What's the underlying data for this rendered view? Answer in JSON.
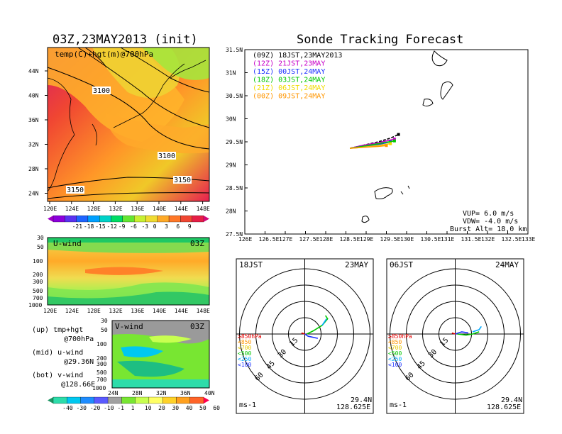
{
  "header": {
    "left_title": "03Z,23MAY2013 (init)",
    "right_title": "Sonde Tracking Forecast"
  },
  "colors": {
    "accent": "#000000",
    "scale_main": [
      "#a000c8",
      "#8c00dc",
      "#5a32f0",
      "#1e64ff",
      "#00a0ff",
      "#00d2c8",
      "#00dc64",
      "#64e632",
      "#c8f032",
      "#f0dc32",
      "#ffaa28",
      "#ff7828",
      "#f04632",
      "#e61e46",
      "#d20a78"
    ],
    "scale_wind": [
      "#1e9664",
      "#2ddcaa",
      "#00c8f0",
      "#1e8cff",
      "#5a5aff",
      "#a0a0a0",
      "#78e632",
      "#c8ff50",
      "#ffff64",
      "#ffd228",
      "#ffa01e",
      "#ff6428",
      "#ff0050"
    ]
  },
  "top_left": {
    "label": "temp(C)+hgt(m)@700hPa",
    "contour_labels": [
      "3100",
      "3100",
      "3150",
      "3150"
    ],
    "lat_ticks": [
      "44N",
      "40N",
      "36N",
      "32N",
      "28N",
      "24N"
    ],
    "lon_ticks": [
      "120E",
      "124E",
      "128E",
      "132E",
      "136E",
      "140E",
      "144E",
      "148E"
    ],
    "colorbar_ticks": [
      "-21",
      "-18",
      "-15",
      "-12",
      "-9",
      "-6",
      "-3",
      "0",
      "3",
      "6",
      "9"
    ]
  },
  "mid_left": {
    "label": "U-wind",
    "time": "03Z",
    "p_ticks": [
      "30",
      "50",
      "100",
      "200",
      "300",
      "500",
      "700",
      "1000"
    ],
    "lon_ticks": [
      "120E",
      "124E",
      "128E",
      "132E",
      "136E",
      "140E",
      "144E",
      "148E"
    ]
  },
  "bot_left": {
    "label": "V-wind",
    "time": "03Z",
    "p_ticks": [
      "30",
      "50",
      "100",
      "200",
      "300",
      "500",
      "700",
      "1000"
    ],
    "lat_ticks": [
      "24N",
      "28N",
      "32N",
      "36N",
      "40N"
    ],
    "colorbar_ticks": [
      "-40",
      "-30",
      "-20",
      "-10",
      "-1",
      "1",
      "10",
      "20",
      "30",
      "40",
      "50",
      "60"
    ]
  },
  "notes": [
    {
      "a": "(up) tmp+hgt",
      "b": "@700hPa"
    },
    {
      "a": "(mid) u-wind",
      "b": "@29.36N"
    },
    {
      "a": "(bot) v-wind",
      "b": "@128.66E"
    }
  ],
  "track_map": {
    "legend": [
      {
        "code": "(09Z)",
        "text": "18JST,23MAY2013",
        "color": "#000000"
      },
      {
        "code": "(12Z)",
        "text": "21JST,23MAY",
        "color": "#c800c8"
      },
      {
        "code": "(15Z)",
        "text": "00JST,24MAY",
        "color": "#1e32ff"
      },
      {
        "code": "(18Z)",
        "text": "03JST,24MAY",
        "color": "#00c800"
      },
      {
        "code": "(21Z)",
        "text": "06JST,24MAY",
        "color": "#f0dc00"
      },
      {
        "code": "(00Z)",
        "text": "09JST,24MAY",
        "color": "#ff9600"
      }
    ],
    "lat_ticks": [
      "31.5N",
      "31N",
      "30.5N",
      "30N",
      "29.5N",
      "29N",
      "28.5N",
      "28N",
      "27.5N"
    ],
    "lon_ticks": [
      "126E",
      "126.5E",
      "127E",
      "127.5E",
      "128E",
      "128.5E",
      "129E",
      "129.5E",
      "130E",
      "130.5E",
      "131E",
      "131.5E",
      "132E",
      "132.5E",
      "133E"
    ],
    "params": [
      "VUP= 6.0 m/s",
      "VDW= -4.0 m/s",
      "Burst Alt= 18.0 km"
    ]
  },
  "hodo_left": {
    "time": "18JST",
    "date": "23MAY",
    "ring_labels": [
      "15",
      "30",
      "45",
      "60"
    ],
    "levels": [
      {
        "text": "≥850hPa",
        "color": "#e60000"
      },
      {
        "text": "<850",
        "color": "#ff9600"
      },
      {
        "text": "<700",
        "color": "#e6c800"
      },
      {
        "text": "<500",
        "color": "#00c800"
      },
      {
        "text": "<250",
        "color": "#00aaff"
      },
      {
        "text": "<100",
        "color": "#1e32ff"
      }
    ],
    "unit": "ms-1",
    "lat": "29.4N",
    "lon": "128.625E"
  },
  "hodo_right": {
    "time": "06JST",
    "date": "24MAY",
    "ring_labels": [
      "15",
      "30",
      "45",
      "60"
    ],
    "levels": [
      {
        "text": "≥850hPa",
        "color": "#e60000"
      },
      {
        "text": "<850",
        "color": "#ff9600"
      },
      {
        "text": "<700",
        "color": "#e6c800"
      },
      {
        "text": "<500",
        "color": "#00c800"
      },
      {
        "text": "<250",
        "color": "#00aaff"
      },
      {
        "text": "<100",
        "color": "#1e32ff"
      }
    ],
    "unit": "ms-1",
    "lat": "29.4N",
    "lon": "128.625E"
  },
  "chart_data": [
    {
      "type": "line",
      "title": "Sonde Tracking Forecast",
      "xlabel": "",
      "ylabel": "",
      "xlim": [
        126,
        133
      ],
      "ylim": [
        27.5,
        31.5
      ],
      "series": [
        {
          "name": "(09Z) 18JST,23MAY2013",
          "x": [
            128.6,
            128.9,
            129.3,
            129.6,
            129.8
          ],
          "y": [
            29.36,
            29.42,
            29.5,
            29.58,
            29.66
          ]
        },
        {
          "name": "(12Z) 21JST,23MAY",
          "x": [
            128.6,
            128.9,
            129.3,
            129.7
          ],
          "y": [
            29.36,
            29.42,
            29.48,
            29.56
          ]
        },
        {
          "name": "(15Z) 00JST,24MAY",
          "x": [
            128.6,
            128.9,
            129.3,
            129.6
          ],
          "y": [
            29.36,
            29.4,
            29.44,
            29.5
          ]
        },
        {
          "name": "(18Z) 03JST,24MAY",
          "x": [
            128.6,
            128.9,
            129.3,
            129.7
          ],
          "y": [
            29.36,
            29.4,
            29.46,
            29.52
          ]
        },
        {
          "name": "(21Z) 06JST,24MAY",
          "x": [
            128.6,
            128.9,
            129.3,
            129.6
          ],
          "y": [
            29.36,
            29.38,
            29.42,
            29.46
          ]
        },
        {
          "name": "(00Z) 09JST,24MAY",
          "x": [
            128.6,
            128.9,
            129.3,
            129.5
          ],
          "y": [
            29.36,
            29.38,
            29.4,
            29.42
          ]
        }
      ]
    },
    {
      "type": "line",
      "title": "18JST 23MAY",
      "ring_values": [
        15,
        30,
        45,
        60
      ],
      "series": [
        {
          "name": "<100",
          "u": [
            0,
            3,
            12
          ],
          "v": [
            0,
            -2,
            -4
          ]
        },
        {
          "name": "<500",
          "u": [
            2,
            8,
            16,
            21,
            19
          ],
          "v": [
            0,
            3,
            8,
            14,
            17
          ]
        },
        {
          "name": "<250",
          "u": [
            16,
            20
          ],
          "v": [
            8,
            14
          ]
        },
        {
          "name": "≥850hPa",
          "u": [
            -3,
            0
          ],
          "v": [
            1,
            0
          ]
        }
      ]
    },
    {
      "type": "line",
      "title": "06JST 24MAY",
      "ring_values": [
        15,
        30,
        45,
        60
      ],
      "series": [
        {
          "name": "<100",
          "u": [
            0,
            6,
            12
          ],
          "v": [
            0,
            2,
            1
          ]
        },
        {
          "name": "<500",
          "u": [
            2,
            10,
            16,
            22
          ],
          "v": [
            0,
            -1,
            0,
            2
          ]
        },
        {
          "name": "<250",
          "u": [
            16,
            22,
            24
          ],
          "v": [
            2,
            4,
            7
          ]
        },
        {
          "name": "≥850hPa",
          "u": [
            -3,
            0
          ],
          "v": [
            1,
            0
          ]
        }
      ]
    }
  ]
}
